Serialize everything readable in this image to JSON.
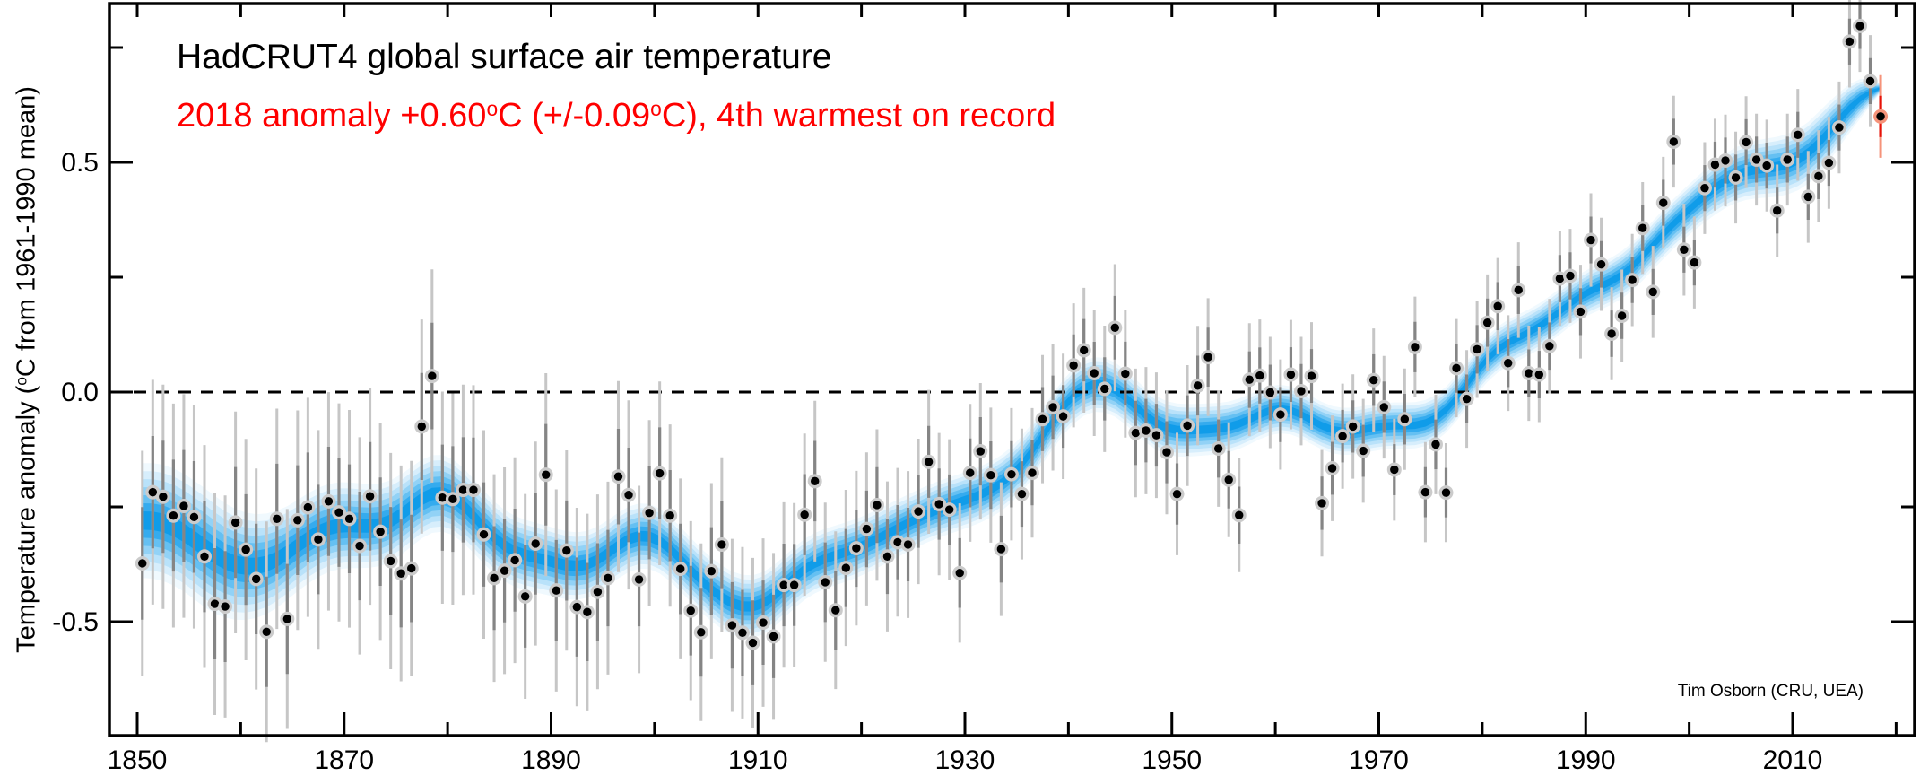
{
  "header": {
    "title": "HadCRUT4 global surface air temperature",
    "subtitle_parts": {
      "p1": "2018 anomaly +0.60",
      "sup1": "o",
      "p2": "C (+/-0.09",
      "sup2": "o",
      "p3": "C), 4th warmest on record"
    },
    "subtitle_color": "#ff0000"
  },
  "attribution": "Tim Osborn (CRU, UEA)",
  "axes": {
    "y_label_parts": {
      "p1": "Temperature anomaly (",
      "sup": "o",
      "p2": "C from 1961-1990 mean)"
    },
    "x_major_ticks": [
      1850,
      1870,
      1890,
      1910,
      1930,
      1950,
      1970,
      1990,
      2010
    ],
    "x_major_labels": [
      "1850",
      "1870",
      "1890",
      "1910",
      "1930",
      "1950",
      "1970",
      "1990",
      "2010"
    ],
    "x_minor_ticks": [
      1860,
      1880,
      1900,
      1920,
      1940,
      1960,
      1980,
      2000,
      2020
    ],
    "x_top_ticks": [
      1850,
      1860,
      1870,
      1880,
      1890,
      1900,
      1910,
      1920,
      1930,
      1940,
      1950,
      1960,
      1970,
      1980,
      1990,
      2000,
      2010,
      2020
    ],
    "y_major_ticks": [
      {
        "value": 0.5,
        "label": "0.5"
      },
      {
        "value": 0.0,
        "label": "0.0"
      },
      {
        "value": -0.5,
        "label": "-0.5"
      }
    ],
    "y_minor_ticks": [
      0.75,
      0.25,
      -0.25
    ]
  },
  "chart_data": {
    "type": "scatter",
    "title": "HadCRUT4 global surface air temperature",
    "subtitle": "2018 anomaly +0.60C (+/-0.09C), 4th warmest on record",
    "xlabel": "",
    "ylabel": "Temperature anomaly (C from 1961-1990 mean)",
    "baseline_period": "1961-1990",
    "xlim": [
      1847.3,
      2021.8
    ],
    "ylim": [
      -0.748,
      0.845
    ],
    "zero_line": 0.0,
    "grid": false,
    "legend": "none",
    "year_start": 1850,
    "year_end": 2018,
    "anomalies_c": [
      -0.373,
      -0.218,
      -0.228,
      -0.269,
      -0.248,
      -0.272,
      -0.358,
      -0.461,
      -0.467,
      -0.284,
      -0.343,
      -0.407,
      -0.522,
      -0.276,
      -0.494,
      -0.279,
      -0.251,
      -0.321,
      -0.238,
      -0.262,
      -0.276,
      -0.335,
      -0.227,
      -0.304,
      -0.368,
      -0.395,
      -0.384,
      -0.075,
      0.035,
      -0.23,
      -0.233,
      -0.213,
      -0.213,
      -0.31,
      -0.405,
      -0.389,
      -0.366,
      -0.445,
      -0.33,
      -0.18,
      -0.432,
      -0.345,
      -0.468,
      -0.479,
      -0.435,
      -0.405,
      -0.184,
      -0.224,
      -0.408,
      -0.263,
      -0.177,
      -0.269,
      -0.385,
      -0.476,
      -0.523,
      -0.39,
      -0.332,
      -0.508,
      -0.524,
      -0.546,
      -0.502,
      -0.532,
      -0.42,
      -0.42,
      -0.267,
      -0.194,
      -0.414,
      -0.475,
      -0.383,
      -0.34,
      -0.298,
      -0.246,
      -0.358,
      -0.327,
      -0.332,
      -0.26,
      -0.152,
      -0.244,
      -0.256,
      -0.394,
      -0.176,
      -0.129,
      -0.181,
      -0.342,
      -0.179,
      -0.222,
      -0.176,
      -0.059,
      -0.033,
      -0.053,
      0.058,
      0.091,
      0.041,
      0.007,
      0.14,
      0.04,
      -0.089,
      -0.084,
      -0.094,
      -0.131,
      -0.222,
      -0.073,
      0.014,
      0.076,
      -0.123,
      -0.191,
      -0.268,
      0.027,
      0.036,
      -0.001,
      -0.049,
      0.038,
      0.002,
      0.035,
      -0.242,
      -0.166,
      -0.096,
      -0.075,
      -0.128,
      0.026,
      -0.033,
      -0.169,
      -0.059,
      0.098,
      -0.218,
      -0.114,
      -0.219,
      0.052,
      -0.015,
      0.093,
      0.151,
      0.187,
      0.063,
      0.222,
      0.041,
      0.038,
      0.1,
      0.247,
      0.253,
      0.175,
      0.331,
      0.278,
      0.127,
      0.166,
      0.244,
      0.357,
      0.218,
      0.412,
      0.545,
      0.31,
      0.282,
      0.444,
      0.495,
      0.504,
      0.467,
      0.544,
      0.506,
      0.493,
      0.395,
      0.506,
      0.56,
      0.425,
      0.47,
      0.499,
      0.576,
      0.763,
      0.797,
      0.677,
      0.6
    ],
    "uncertainty_95_breakpoints": [
      [
        1850,
        0.245
      ],
      [
        1875,
        0.235
      ],
      [
        1890,
        0.22
      ],
      [
        1900,
        0.2
      ],
      [
        1915,
        0.175
      ],
      [
        1930,
        0.15
      ],
      [
        1940,
        0.135
      ],
      [
        1946,
        0.14
      ],
      [
        1955,
        0.125
      ],
      [
        1965,
        0.115
      ],
      [
        1980,
        0.105
      ],
      [
        1995,
        0.1
      ],
      [
        2018,
        0.1
      ]
    ],
    "smoothed_band": {
      "smoothing": "gaussian, sigma 3 yr, window +/-9 yr",
      "halfwidth_breakpoints": [
        [
          1850.5,
          0.125
        ],
        [
          1857,
          0.13
        ],
        [
          1865,
          0.1
        ],
        [
          1875,
          0.088
        ],
        [
          1885,
          0.078
        ],
        [
          1895,
          0.072
        ],
        [
          1910,
          0.068
        ],
        [
          1925,
          0.062
        ],
        [
          1940,
          0.06
        ],
        [
          1950,
          0.058
        ],
        [
          1962,
          0.052
        ],
        [
          1975,
          0.05
        ],
        [
          1990,
          0.05
        ],
        [
          2000,
          0.055
        ],
        [
          2008,
          0.065
        ],
        [
          2013,
          0.068
        ],
        [
          2016,
          0.05
        ],
        [
          2017.5,
          0.03
        ],
        [
          2018.5,
          0.01
        ]
      ]
    },
    "highlight": {
      "year": 2018,
      "anomaly_c": 0.6,
      "uncertainty_c": 0.09,
      "rank": "4th warmest on record"
    },
    "colors": {
      "point": "#000000",
      "halo": "#cbcbcb",
      "bar_outer": "#c6c6c6",
      "bar_inner": "#858585",
      "band_levels": [
        "#f0f9fe",
        "#d7eefc",
        "#b9e2fa",
        "#92d2f6",
        "#65c0f2",
        "#35abee",
        "#109ce9"
      ],
      "band_fractions": [
        1,
        0.86,
        0.72,
        0.58,
        0.44,
        0.3,
        0.16
      ],
      "highlight_red": "#e61208",
      "highlight_salmon": "#f5937a",
      "axis": "#000000",
      "zero_line": "#000000"
    }
  }
}
